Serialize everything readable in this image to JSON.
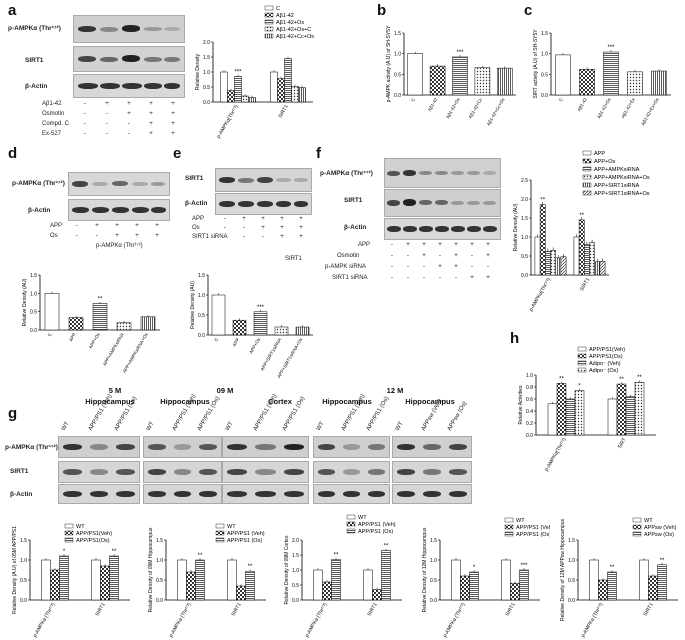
{
  "panels": {
    "a": {
      "label": "a",
      "blot_labels": [
        "p-AMPKα (Thr¹⁷²)",
        "SIRT1",
        "β-Actin"
      ],
      "conditions": [
        {
          "name": "Aβ1-42",
          "signs": [
            "-",
            "+",
            "+",
            "+",
            "+"
          ]
        },
        {
          "name": "Osmotin",
          "signs": [
            "-",
            "-",
            "+",
            "+",
            "+"
          ]
        },
        {
          "name": "Compd. C",
          "signs": [
            "-",
            "-",
            "-",
            "+",
            "+"
          ]
        },
        {
          "name": "Ex-527",
          "signs": [
            "-",
            "-",
            "-",
            "+",
            "+"
          ]
        }
      ]
    },
    "d": {
      "label": "d",
      "blot_labels": [
        "p-AMPKα (Thr¹⁷²)",
        "β-Actin"
      ],
      "conditions": [
        {
          "name": "APP",
          "signs": [
            "-",
            "+",
            "+",
            "+",
            "+"
          ]
        },
        {
          "name": "Os",
          "signs": [
            "-",
            "-",
            "+",
            "+",
            "+"
          ]
        }
      ],
      "footer": "p-AMPKα (Thr¹⁷²)"
    },
    "e": {
      "label": "e",
      "blot_labels": [
        "SIRT1",
        "β-Actin"
      ],
      "conditions": [
        {
          "name": "APP",
          "signs": [
            "-",
            "+",
            "+",
            "+",
            "+"
          ]
        },
        {
          "name": "Os",
          "signs": [
            "-",
            "-",
            "+",
            "+",
            "+"
          ]
        },
        {
          "name": "SIRT1 siRNA",
          "signs": [
            "-",
            "-",
            "-",
            "+",
            "+"
          ]
        }
      ],
      "footer": "SIRT1"
    },
    "f": {
      "label": "f",
      "blot_labels": [
        "p-AMPKα (Thr¹⁷²)",
        "SIRT1",
        "β-Actin"
      ],
      "conditions": [
        {
          "name": "APP",
          "signs": [
            "-",
            "+",
            "+",
            "+",
            "+",
            "+",
            "+"
          ]
        },
        {
          "name": "Osmotin",
          "signs": [
            "-",
            "-",
            "+",
            "-",
            "+",
            "-",
            "+"
          ]
        },
        {
          "name": "p-AMPK siRNA",
          "signs": [
            "-",
            "-",
            "-",
            "+",
            "+",
            "-",
            "-"
          ]
        },
        {
          "name": "SIRT1 siRNA",
          "signs": [
            "-",
            "-",
            "-",
            "-",
            "-",
            "+",
            "+"
          ]
        }
      ]
    },
    "g": {
      "label": "g",
      "ages": [
        "5 M",
        "09 M",
        "12 M"
      ],
      "regions": [
        "Hippocampus",
        "Hippocampus",
        "Cortex",
        "Hippocampus",
        "Hippocampus"
      ],
      "lanes": [
        [
          "WT",
          "APP/PS1 (Veh)",
          "APP/PS1 (Os)"
        ],
        [
          "WT",
          "APP/PS1 (Veh)",
          "APP/PS1 (Os)"
        ],
        [
          "WT",
          "APP/PS1 (Veh)",
          "APP/PS1 (Os)"
        ],
        [
          "WT",
          "APP/PS1 (Veh)",
          "APP/PS1 (Os)"
        ],
        [
          "WT",
          "APPsw (Veh)",
          "APPsw (Os)"
        ]
      ],
      "blot_labels": [
        "p-AMPKα (Thr¹⁷²)",
        "SIRT1",
        "β-Actin"
      ]
    },
    "b": {
      "label": "b"
    },
    "c": {
      "label": "c"
    },
    "h": {
      "label": "h"
    }
  },
  "chart_data": [
    {
      "id": "a",
      "type": "bar",
      "ylabel": "Relative Density",
      "ylim": [
        0,
        2.0
      ],
      "yticks": [
        "0.0",
        "0.5",
        "1.0",
        "1.5",
        "2.0"
      ],
      "categories": [
        "p-AMPKα(Thr¹⁷²)",
        "SIRT1"
      ],
      "series": [
        {
          "name": "C",
          "values": [
            1.0,
            1.0
          ]
        },
        {
          "name": "Aβ1-42",
          "values": [
            0.38,
            0.78
          ]
        },
        {
          "name": "Aβ1-42+Os",
          "values": [
            0.85,
            1.45
          ]
        },
        {
          "name": "Aβ1-42+Os+C",
          "values": [
            0.2,
            0.52
          ]
        },
        {
          "name": "Aβ1-42+Cc+Os",
          "values": [
            0.15,
            0.48
          ]
        }
      ],
      "annotations": [
        {
          "cat": 0,
          "series": 2,
          "text": "***"
        }
      ],
      "legend": "top-right"
    },
    {
      "id": "b",
      "type": "bar",
      "ylabel": "p-AMPK activity (A.U) of SH-SY5Y",
      "ylim": [
        0,
        1.5
      ],
      "yticks": [
        "0.0",
        "0.5",
        "1.0",
        "1.5"
      ],
      "categories": [
        "C",
        "Aβ1-42",
        "Aβ1-42+Os",
        "Aβ1-42+Cc",
        "Aβ1-42+Cc+Os"
      ],
      "values": [
        1.0,
        0.7,
        0.92,
        0.66,
        0.65
      ],
      "annotations": [
        {
          "index": 2,
          "text": "***"
        }
      ]
    },
    {
      "id": "c",
      "type": "bar",
      "ylabel": "SIRT activity (A.U) of SH-SY5Y",
      "ylim": [
        0,
        1.5
      ],
      "yticks": [
        "0.0",
        "0.5",
        "1.0",
        "1.5"
      ],
      "categories": [
        "C",
        "Aβ1-42",
        "Aβ1-42+Os",
        "Aβ1-42+Ex",
        "Aβ1-42+Ex+Os"
      ],
      "values": [
        0.97,
        0.62,
        1.04,
        0.56,
        0.58
      ],
      "annotations": [
        {
          "index": 2,
          "text": "***"
        }
      ]
    },
    {
      "id": "d",
      "type": "bar",
      "ylabel": "Relative Density (AU)",
      "ylim": [
        0,
        1.5
      ],
      "yticks": [
        "0.0",
        "0.5",
        "1.0",
        "1.5"
      ],
      "categories": [
        "C",
        "APP",
        "APP+Os",
        "APP+AMPKsiRNA",
        "APP+AMPKsiRNA+Os"
      ],
      "values": [
        1.0,
        0.34,
        0.72,
        0.2,
        0.36
      ],
      "annotations": [
        {
          "index": 2,
          "text": "**"
        }
      ]
    },
    {
      "id": "e",
      "type": "bar",
      "ylabel": "Relative Density (AU)",
      "ylim": [
        0,
        1.5
      ],
      "yticks": [
        "0.0",
        "0.5",
        "1.0",
        "1.5"
      ],
      "categories": [
        "C",
        "APP",
        "APP+Os",
        "APP+SIRT1siRNA",
        "APP+SIRT1siRNA+Os"
      ],
      "values": [
        1.0,
        0.37,
        0.58,
        0.2,
        0.2
      ],
      "annotations": [
        {
          "index": 2,
          "text": "***"
        }
      ]
    },
    {
      "id": "f",
      "type": "bar",
      "ylabel": "Relative Density (AU)",
      "ylim": [
        0,
        2.5
      ],
      "yticks": [
        "0.0",
        "0.5",
        "1.0",
        "1.5",
        "2.0",
        "2.5"
      ],
      "categories": [
        "p-AMPKα(Thr¹⁷²)",
        "SIRT1"
      ],
      "series": [
        {
          "name": "APP",
          "values": [
            1.0,
            1.0
          ]
        },
        {
          "name": "APP+Os",
          "values": [
            1.85,
            1.45
          ]
        },
        {
          "name": "APP+AMPKsiRNA",
          "values": [
            0.62,
            0.8
          ]
        },
        {
          "name": "APP+AMPKsiRNA+Os",
          "values": [
            0.65,
            0.85
          ]
        },
        {
          "name": "APP+SIRT1siRNA",
          "values": [
            0.45,
            0.35
          ]
        },
        {
          "name": "APP+SIRT1siRNA+Os",
          "values": [
            0.48,
            0.36
          ]
        }
      ],
      "annotations": [
        {
          "cat": 0,
          "series": 1,
          "text": "**"
        },
        {
          "cat": 1,
          "series": 1,
          "text": "**"
        }
      ],
      "legend": "top-right"
    },
    {
      "id": "h",
      "type": "bar",
      "ylabel": "Relative Activities",
      "ylim": [
        0,
        1.0
      ],
      "yticks": [
        "0.0",
        "0.2",
        "0.4",
        "0.6",
        "0.8",
        "1.0"
      ],
      "categories": [
        "p-AMPKα(Thr¹⁷²)",
        "SIRT"
      ],
      "series": [
        {
          "name": "APP/PS1(Veh)",
          "values": [
            0.52,
            0.6
          ]
        },
        {
          "name": "APP/PS1(Os)",
          "values": [
            0.86,
            0.85
          ]
        },
        {
          "name": "Adipo⁻ (Veh)",
          "values": [
            0.6,
            0.64
          ]
        },
        {
          "name": "Adipo⁻ (Os)",
          "values": [
            0.74,
            0.88
          ]
        }
      ],
      "annotations": [
        {
          "cat": 0,
          "series": 1,
          "text": "**"
        },
        {
          "cat": 0,
          "series": 3,
          "text": "*"
        },
        {
          "cat": 1,
          "series": 1,
          "text": "**"
        },
        {
          "cat": 1,
          "series": 3,
          "text": "**"
        }
      ],
      "legend": "top-right"
    },
    {
      "id": "g1",
      "type": "bar",
      "ylabel": "Relative Density (A.U) of 05M APP/PS1",
      "ylim": [
        0,
        1.5
      ],
      "yticks": [
        "0.0",
        "0.5",
        "1.0",
        "1.5"
      ],
      "categories": [
        "p-AMPKα (Thr¹⁷²)",
        "SIRT1"
      ],
      "series": [
        {
          "name": "WT",
          "values": [
            1.0,
            1.0
          ]
        },
        {
          "name": "APP/PS1(Veh)",
          "values": [
            0.75,
            0.85
          ]
        },
        {
          "name": "APP/PS1(Os)",
          "values": [
            1.1,
            1.1
          ]
        }
      ],
      "annotations": [
        {
          "cat": 0,
          "series": 2,
          "text": "*"
        },
        {
          "cat": 1,
          "series": 2,
          "text": "**"
        }
      ],
      "legend": "top-right"
    },
    {
      "id": "g2",
      "type": "bar",
      "ylabel": "Relative Density of 09M Hippocampus",
      "ylim": [
        0,
        1.5
      ],
      "yticks": [
        "0.0",
        "0.5",
        "1.0",
        "1.5"
      ],
      "categories": [
        "p-AMPKα (Thr¹⁷²)",
        "SIRT1"
      ],
      "series": [
        {
          "name": "WT",
          "values": [
            1.0,
            1.0
          ]
        },
        {
          "name": "APP/PS1 (Veh)",
          "values": [
            0.7,
            0.35
          ]
        },
        {
          "name": "APP/PS1 (Os)",
          "values": [
            1.0,
            0.72
          ]
        }
      ],
      "annotations": [
        {
          "cat": 0,
          "series": 2,
          "text": "**"
        },
        {
          "cat": 1,
          "series": 2,
          "text": "**"
        }
      ],
      "legend": "top-right"
    },
    {
      "id": "g3",
      "type": "bar",
      "ylabel": "Relative Density of 09M Cortex",
      "ylim": [
        0,
        2.0
      ],
      "yticks": [
        "0.0",
        "0.5",
        "1.0",
        "1.5",
        "2.0"
      ],
      "categories": [
        "p-AMPKα (Thr¹⁷²)",
        "SIRT1"
      ],
      "series": [
        {
          "name": "WT",
          "values": [
            1.0,
            1.0
          ]
        },
        {
          "name": "APP/PS1 (Veh)",
          "values": [
            0.6,
            0.35
          ]
        },
        {
          "name": "APP/PS1 (Os)",
          "values": [
            1.35,
            1.65
          ]
        }
      ],
      "annotations": [
        {
          "cat": 0,
          "series": 2,
          "text": "**"
        },
        {
          "cat": 1,
          "series": 2,
          "text": "**"
        }
      ],
      "legend": "top-right"
    },
    {
      "id": "g4",
      "type": "bar",
      "ylabel": "Relative Density of 12M Hippocampus",
      "ylim": [
        0,
        1.5
      ],
      "yticks": [
        "0.0",
        "0.5",
        "1.0",
        "1.5"
      ],
      "categories": [
        "p-AMPKα (Thr¹⁷²)",
        "SIRT1"
      ],
      "series": [
        {
          "name": "WT",
          "values": [
            1.0,
            1.0
          ]
        },
        {
          "name": "APP/PS1 (Veh)",
          "values": [
            0.6,
            0.42
          ]
        },
        {
          "name": "APP/PS1 (Os)",
          "values": [
            0.7,
            0.75
          ]
        }
      ],
      "annotations": [
        {
          "cat": 0,
          "series": 2,
          "text": "*"
        },
        {
          "cat": 1,
          "series": 2,
          "text": "***"
        }
      ],
      "legend": "top-right"
    },
    {
      "id": "g5",
      "type": "bar",
      "ylabel": "Relative Density of 12M APPsw Hippocampus",
      "ylim": [
        0,
        1.5
      ],
      "yticks": [
        "0.0",
        "0.5",
        "1.0",
        "1.5"
      ],
      "categories": [
        "p-AMPKα (Thr¹⁷²)",
        "SIRT1"
      ],
      "series": [
        {
          "name": "WT",
          "values": [
            1.0,
            1.0
          ]
        },
        {
          "name": "APPsw (Veh)",
          "values": [
            0.5,
            0.6
          ]
        },
        {
          "name": "APPsw (Os)",
          "values": [
            0.7,
            0.88
          ]
        }
      ],
      "annotations": [
        {
          "cat": 0,
          "series": 2,
          "text": "**"
        },
        {
          "cat": 1,
          "series": 2,
          "text": "**"
        }
      ],
      "legend": "top-right"
    }
  ]
}
